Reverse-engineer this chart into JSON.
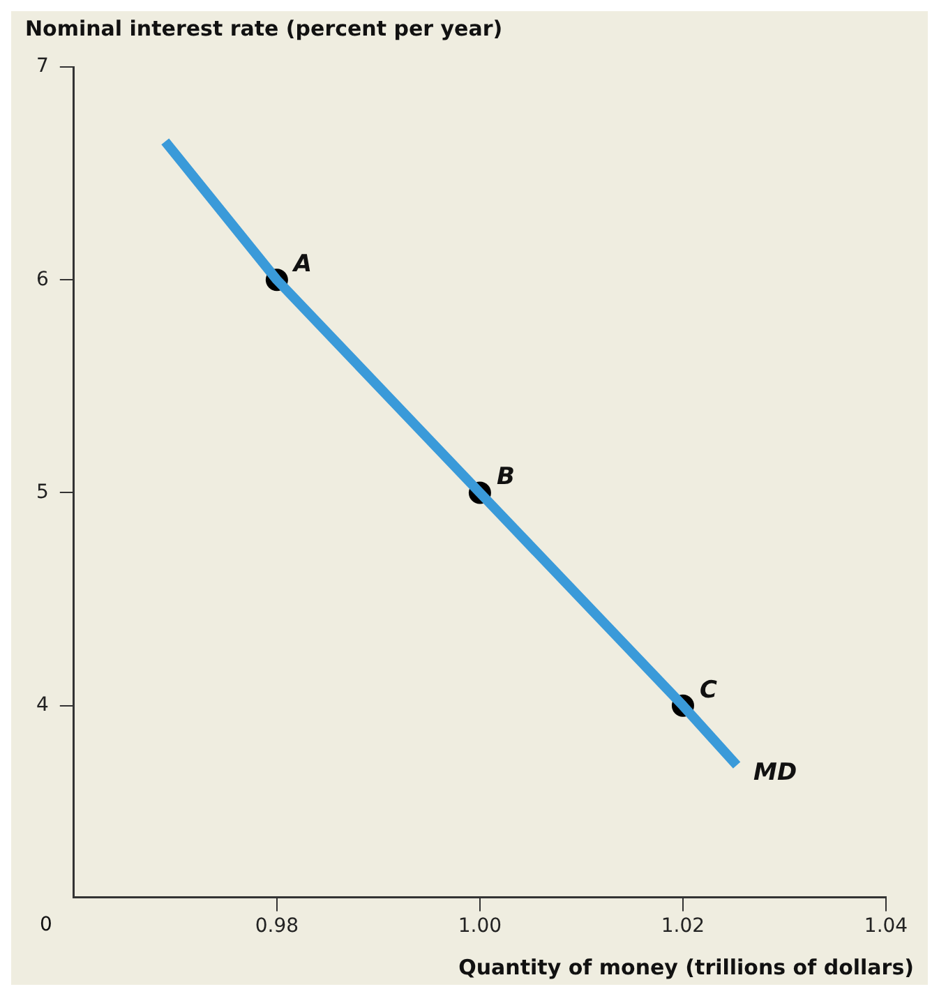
{
  "chart_data": {
    "type": "line",
    "ylabel": "Nominal interest rate (percent per year)",
    "xlabel": "Quantity of money (trillions of dollars)",
    "xlim": [
      0.96,
      1.04
    ],
    "ylim": [
      3.1,
      7
    ],
    "xticks": [
      0.98,
      {
        "value": 1,
        "label": "1.00"
      },
      1.02,
      1.04
    ],
    "yticks": [
      4,
      5,
      6,
      7
    ],
    "grid": false,
    "legend": false,
    "series": [
      {
        "name": "MD",
        "color": "#3a9ad9",
        "marker": "none",
        "x": [
          0.969,
          0.98,
          1.0,
          1.02,
          1.0253
        ],
        "values": [
          6.65,
          6,
          5,
          4,
          3.72
        ]
      },
      {
        "type": "scatter",
        "color": "#000000",
        "marker": "circle",
        "x": [
          0.98,
          1.0,
          1.02
        ],
        "values": [
          6,
          5,
          4
        ]
      }
    ],
    "annotations": [
      {
        "text": "A",
        "x": 0.98,
        "y": 6
      },
      {
        "text": "B",
        "x": 1.0,
        "y": 5
      },
      {
        "text": "C",
        "x": 1.02,
        "y": 4
      },
      "0"
    ]
  }
}
